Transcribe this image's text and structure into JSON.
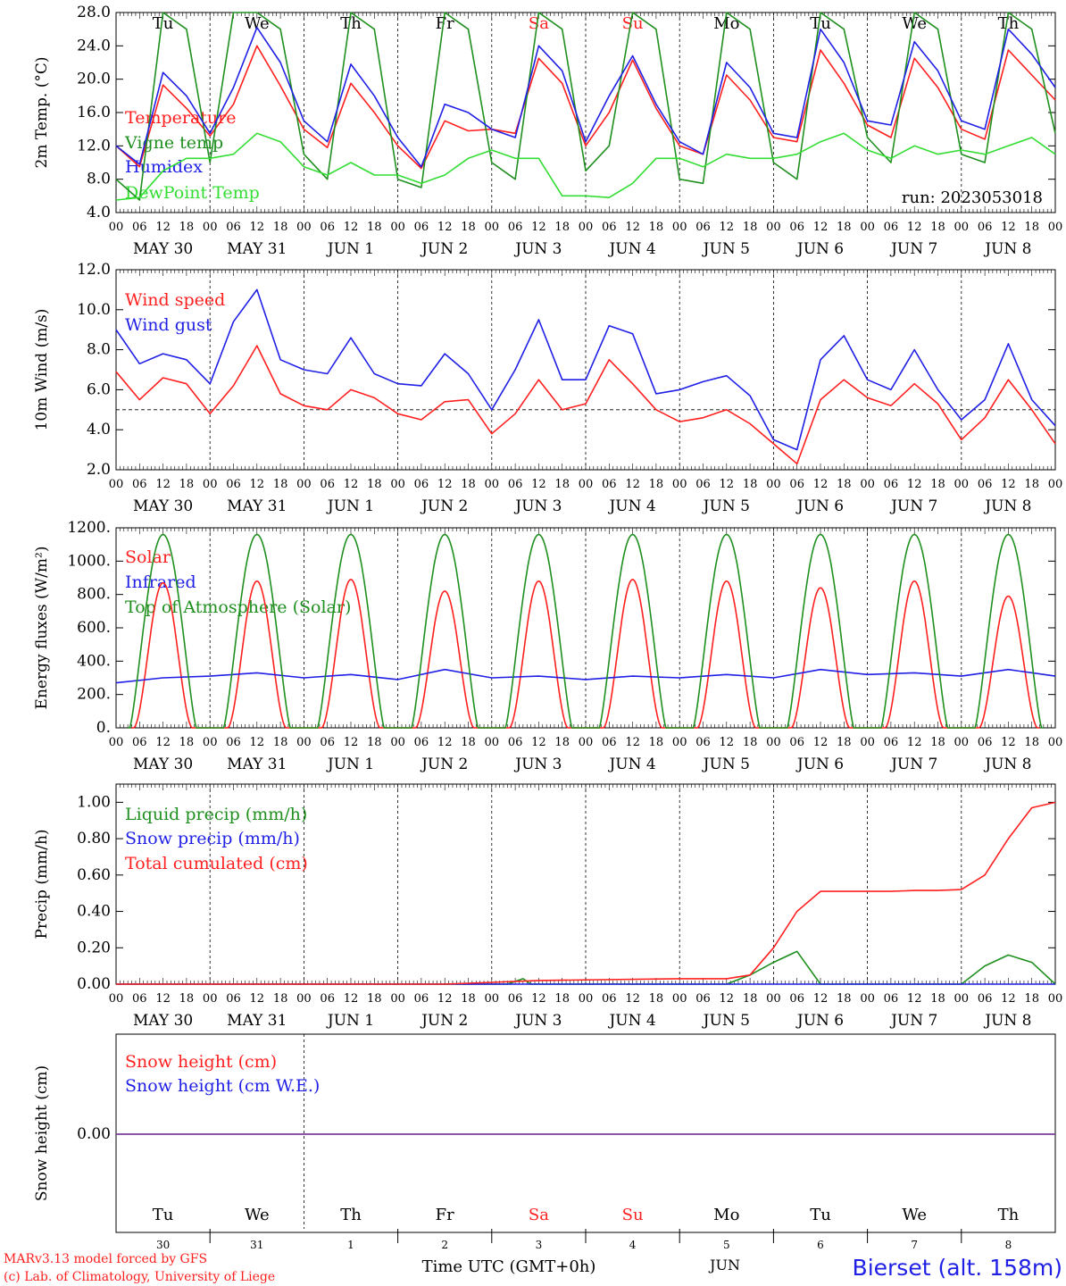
{
  "figure": {
    "run_label": "run: 2023053018",
    "location": "Bierset (alt. 158m)",
    "footer_model": "MARv3.13 model forced by GFS",
    "footer_credit": "(c) Lab. of Climatology, University of Liege",
    "time_axis_title": "Time UTC (GMT+0h)",
    "month_label": "JUN",
    "hour_ticks": [
      "00",
      "06",
      "12",
      "18"
    ],
    "final_hour_tick": "00",
    "dates": [
      "MAY 30",
      "MAY 31",
      "JUN  1",
      "JUN  2",
      "JUN  3",
      "JUN  4",
      "JUN  5",
      "JUN  6",
      "JUN  7",
      "JUN  8"
    ],
    "days": [
      "Tu",
      "We",
      "Th",
      "Fr",
      "Sa",
      "Su",
      "Mo",
      "Tu",
      "We",
      "Th"
    ],
    "day_numbers": [
      "30",
      "31",
      "1",
      "2",
      "3",
      "4",
      "5",
      "6",
      "7",
      "8"
    ],
    "weekend_indices": [
      4,
      5
    ],
    "colors": {
      "weekday": "#000000",
      "weekend": "#ff1f1f",
      "red": "#ff1f1f",
      "blue": "#1f1fe6",
      "green": "#1f8f1f",
      "lightgreen": "#33dd33",
      "purple": "#7f3f9f"
    }
  },
  "chart_data": [
    {
      "type": "line",
      "ylabel": "2m Temp. (°C)",
      "ylim": [
        4,
        28
      ],
      "yticks": [
        "4.0",
        "8.0",
        "12.0",
        "16.0",
        "20.0",
        "24.0",
        "28.0"
      ],
      "x_unit": "hours since 2023-05-30 00 UTC",
      "series": [
        {
          "name": "Temperature",
          "color": "red",
          "x": [
            0,
            6,
            12,
            18,
            24,
            30,
            36,
            42,
            48,
            54,
            60,
            66,
            72,
            78,
            84,
            90,
            96,
            102,
            108,
            114,
            120,
            126,
            132,
            138,
            144,
            150,
            156,
            162,
            168,
            174,
            180,
            186,
            192,
            198,
            204,
            210,
            216,
            222,
            228,
            234,
            240
          ],
          "values": [
            12,
            9.5,
            19.3,
            16.5,
            13.2,
            17,
            24,
            19.2,
            14,
            11.8,
            19.5,
            16,
            12,
            9.3,
            15,
            13.8,
            14,
            13.5,
            22.5,
            19.5,
            12,
            16,
            22.3,
            16.5,
            12,
            11,
            20.5,
            17.5,
            13,
            12.5,
            23.5,
            19.5,
            14.5,
            13,
            22.5,
            19,
            14,
            12.8,
            23.5,
            20.5,
            17.5
          ]
        },
        {
          "name": "Vigne temp",
          "color": "green",
          "x": [
            0,
            6,
            12,
            18,
            24,
            30,
            36,
            42,
            48,
            54,
            60,
            66,
            72,
            78,
            84,
            90,
            96,
            102,
            108,
            114,
            120,
            126,
            132,
            138,
            144,
            150,
            156,
            162,
            168,
            174,
            180,
            186,
            192,
            198,
            204,
            210,
            216,
            222,
            228,
            234,
            240
          ],
          "values": [
            8,
            5.5,
            28,
            26,
            10,
            28,
            28,
            26,
            11,
            8,
            28,
            26,
            8,
            7,
            28,
            26,
            10,
            8,
            28,
            26,
            9,
            12,
            28,
            26,
            8,
            7.5,
            28,
            26,
            10,
            8,
            28,
            26,
            13,
            10,
            28,
            26,
            11,
            10,
            28,
            26,
            13.5
          ]
        },
        {
          "name": "Humidex",
          "color": "blue",
          "x": [
            0,
            6,
            12,
            18,
            24,
            30,
            36,
            42,
            48,
            54,
            60,
            66,
            72,
            78,
            84,
            90,
            96,
            102,
            108,
            114,
            120,
            126,
            132,
            138,
            144,
            150,
            156,
            162,
            168,
            174,
            180,
            186,
            192,
            198,
            204,
            210,
            216,
            222,
            228,
            234,
            240
          ],
          "values": [
            12,
            9.8,
            20.8,
            18,
            13.5,
            19,
            26.2,
            22,
            15,
            12.5,
            21.8,
            18,
            13,
            9.5,
            17,
            16,
            14,
            13,
            24,
            21,
            12.5,
            18,
            22.8,
            17,
            12.5,
            11,
            22,
            19,
            13.5,
            13,
            26,
            22,
            15,
            14.5,
            24.5,
            21,
            15,
            14,
            26,
            23,
            19
          ]
        },
        {
          "name": "DewPoint Temp",
          "color": "lightgreen",
          "x": [
            0,
            6,
            12,
            18,
            24,
            30,
            36,
            42,
            48,
            54,
            60,
            66,
            72,
            78,
            84,
            90,
            96,
            102,
            108,
            114,
            120,
            126,
            132,
            138,
            144,
            150,
            156,
            162,
            168,
            174,
            180,
            186,
            192,
            198,
            204,
            210,
            216,
            222,
            228,
            234,
            240
          ],
          "values": [
            5.5,
            5.8,
            9,
            10.5,
            10.5,
            11,
            13.5,
            12.5,
            9.5,
            8.5,
            10,
            8.5,
            8.5,
            7.5,
            8.5,
            10.5,
            11.5,
            10.5,
            10.5,
            6,
            6,
            5.8,
            7.5,
            10.5,
            10.5,
            9.5,
            11,
            10.5,
            10.5,
            11,
            12.5,
            13.5,
            11.5,
            10.5,
            12,
            11,
            11.5,
            11,
            12,
            13,
            11
          ]
        }
      ]
    },
    {
      "type": "line",
      "ylabel": "10m Wind (m/s)",
      "ylim": [
        2,
        12
      ],
      "yticks": [
        "2.0",
        "4.0",
        "6.0",
        "8.0",
        "10.0",
        "12.0"
      ],
      "reference_line": 5,
      "x_unit": "hours since 2023-05-30 00 UTC",
      "series": [
        {
          "name": "Wind speed",
          "color": "red",
          "x": [
            0,
            6,
            12,
            18,
            24,
            30,
            36,
            42,
            48,
            54,
            60,
            66,
            72,
            78,
            84,
            90,
            96,
            102,
            108,
            114,
            120,
            126,
            132,
            138,
            144,
            150,
            156,
            162,
            168,
            174,
            180,
            186,
            192,
            198,
            204,
            210,
            216,
            222,
            228,
            234,
            240
          ],
          "values": [
            6.9,
            5.5,
            6.6,
            6.3,
            4.8,
            6.2,
            8.2,
            5.8,
            5.2,
            5,
            6,
            5.6,
            4.8,
            4.5,
            5.4,
            5.5,
            3.8,
            4.8,
            6.5,
            5,
            5.3,
            7.5,
            6.3,
            5,
            4.4,
            4.6,
            5,
            4.3,
            3.3,
            2.3,
            5.5,
            6.5,
            5.6,
            5.2,
            6.3,
            5.3,
            3.5,
            4.6,
            6.5,
            5,
            3.3
          ]
        },
        {
          "name": "Wind gust",
          "color": "blue",
          "x": [
            0,
            6,
            12,
            18,
            24,
            30,
            36,
            42,
            48,
            54,
            60,
            66,
            72,
            78,
            84,
            90,
            96,
            102,
            108,
            114,
            120,
            126,
            132,
            138,
            144,
            150,
            156,
            162,
            168,
            174,
            180,
            186,
            192,
            198,
            204,
            210,
            216,
            222,
            228,
            234,
            240
          ],
          "values": [
            9,
            7.3,
            7.8,
            7.5,
            6.3,
            9.4,
            11,
            7.5,
            7,
            6.8,
            8.6,
            6.8,
            6.3,
            6.2,
            7.8,
            6.8,
            5,
            7,
            9.5,
            6.5,
            6.5,
            9.2,
            8.8,
            5.8,
            6,
            6.4,
            6.7,
            5.7,
            3.5,
            3,
            7.5,
            8.7,
            6.5,
            6,
            8,
            6,
            4.5,
            5.5,
            8.3,
            5.5,
            4.2
          ]
        }
      ]
    },
    {
      "type": "line",
      "ylabel": "Energy fluxes (W/m²)",
      "ylim": [
        0,
        1200
      ],
      "yticks": [
        "0.",
        "200.",
        "400.",
        "600.",
        "800.",
        "1000.",
        "1200."
      ],
      "x_unit": "hours since 2023-05-30 00 UTC",
      "series": [
        {
          "name": "Solar",
          "color": "red",
          "daily_peak": [
            870,
            880,
            890,
            820,
            880,
            890,
            880,
            840,
            880,
            790
          ]
        },
        {
          "name": "Infrared",
          "color": "blue",
          "x": [
            0,
            12,
            24,
            36,
            48,
            60,
            72,
            84,
            96,
            108,
            120,
            132,
            144,
            156,
            168,
            180,
            192,
            204,
            216,
            228,
            240
          ],
          "values": [
            270,
            300,
            310,
            330,
            300,
            320,
            290,
            350,
            300,
            310,
            290,
            310,
            300,
            320,
            300,
            350,
            320,
            330,
            310,
            350,
            310
          ]
        },
        {
          "name": "Top of Atmosphere (Solar)",
          "color": "green",
          "daily_peak": [
            1160,
            1160,
            1160,
            1160,
            1160,
            1160,
            1160,
            1160,
            1160,
            1160
          ]
        }
      ]
    },
    {
      "type": "line",
      "ylabel": "Precip (mm/h)",
      "ylim": [
        0,
        1.1
      ],
      "yticks": [
        "0.00",
        "0.20",
        "0.40",
        "0.60",
        "0.80",
        "1.00"
      ],
      "x_unit": "hours since 2023-05-30 00 UTC",
      "series": [
        {
          "name": "Liquid precip (mm/h)",
          "color": "green",
          "x": [
            0,
            100,
            104,
            106,
            108,
            150,
            156,
            162,
            168,
            174,
            180,
            186,
            192,
            198,
            204,
            210,
            216,
            222,
            228,
            234,
            240
          ],
          "values": [
            0,
            0,
            0.03,
            0,
            0,
            0,
            0,
            0.05,
            0.12,
            0.18,
            0,
            0,
            0,
            0,
            0,
            0,
            0,
            0.1,
            0.16,
            0.12,
            0
          ]
        },
        {
          "name": "Snow precip (mm/h)",
          "color": "blue",
          "x": [
            0,
            240
          ],
          "values": [
            0,
            0
          ]
        },
        {
          "name": "Total cumulated (cm)",
          "color": "red",
          "x": [
            0,
            84,
            96,
            108,
            144,
            156,
            162,
            168,
            174,
            180,
            186,
            192,
            198,
            204,
            210,
            216,
            222,
            228,
            234,
            240
          ],
          "values": [
            0,
            0,
            0.01,
            0.02,
            0.03,
            0.03,
            0.05,
            0.2,
            0.4,
            0.51,
            0.51,
            0.51,
            0.51,
            0.515,
            0.515,
            0.52,
            0.6,
            0.8,
            0.97,
            1.0
          ]
        }
      ]
    },
    {
      "type": "line",
      "ylabel": "Snow height (cm)",
      "yticks": [
        "0.00"
      ],
      "x_unit": "hours since 2023-05-30 00 UTC",
      "series": [
        {
          "name": "Snow height (cm)",
          "color": "red",
          "x": [
            0,
            240
          ],
          "values": [
            0,
            0
          ]
        },
        {
          "name": "Snow height (cm W.E.)",
          "color": "blue",
          "x": [
            0,
            240
          ],
          "values": [
            0,
            0
          ]
        }
      ]
    }
  ]
}
